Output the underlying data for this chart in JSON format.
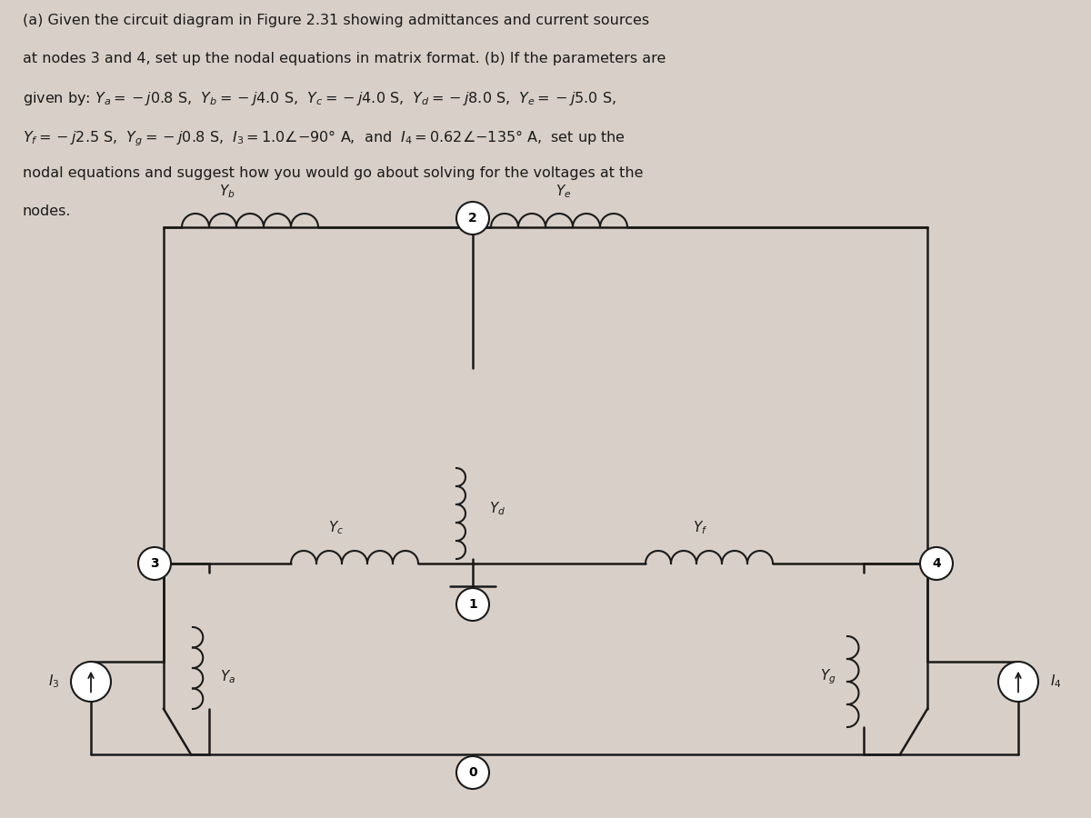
{
  "title_text": "(a) Given the circuit diagram in Figure 2.31 showing admittances and current sources\nat nodes 3 and 4, set up the nodal equations in matrix format. (b) If the parameters are\ngiven by: $Y_a = -j0.8$ S, $Y_b = -j4.0$ S, $Y_c = -j4.0$ S, $Y_d = -j8.0$ S, $Y_e = -j5.0$ S,\n$Y_f = -j2.5$ S, $Y_g = -j0.8$ S, $I_3 = 1.0\\angle{-90°}$ A, and $I_4 = 0.62\\angle{-135°}$ A, set up the\nnodal equations and suggest how you would go about solving for the voltages at the\nnodes.",
  "bg_color": "#d8d0c8",
  "line_color": "#1a1a1a",
  "coil_color": "#1a1a1a",
  "node_circle_color": "#ffffff",
  "node_circle_edge": "#1a1a1a",
  "text_color": "#1a1a1a",
  "source_color": "#1a1a1a"
}
